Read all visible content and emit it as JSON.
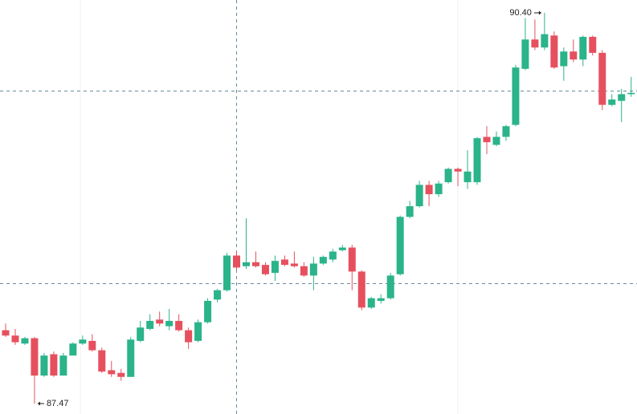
{
  "chart_data": {
    "type": "candlestick",
    "max_label": "90.40",
    "min_label": "87.47",
    "up_color": "#2bb38a",
    "down_color": "#e6505e",
    "open": [
      88.02,
      87.98,
      87.92,
      87.96,
      87.68,
      87.84,
      87.68,
      87.83,
      87.92,
      87.94,
      87.87,
      87.72,
      87.7,
      87.67,
      87.94,
      88.03,
      88.1,
      88.05,
      88.09,
      88.02,
      87.94,
      88.08,
      88.25,
      88.32,
      88.58,
      88.5,
      88.53,
      88.51,
      88.45,
      88.55,
      88.52,
      88.5,
      88.43,
      88.52,
      88.55,
      88.62,
      88.64,
      88.46,
      88.19,
      88.24,
      88.26,
      88.44,
      88.87,
      88.95,
      89.11,
      89.04,
      89.13,
      89.23,
      89.13,
      89.13,
      89.47,
      89.41,
      89.47,
      89.56,
      89.98,
      90.2,
      90.14,
      90.23,
      90.0,
      90.11,
      90.05,
      90.22,
      90.1,
      89.71,
      89.74,
      89.79
    ],
    "high": [
      88.07,
      88.03,
      87.97,
      87.97,
      87.85,
      87.86,
      87.85,
      87.93,
      87.98,
      87.99,
      87.89,
      87.79,
      87.73,
      87.97,
      88.09,
      88.14,
      88.16,
      88.18,
      88.14,
      88.04,
      88.1,
      88.26,
      88.33,
      88.6,
      88.61,
      88.86,
      88.61,
      88.53,
      88.58,
      88.58,
      88.61,
      88.53,
      88.57,
      88.58,
      88.63,
      88.66,
      88.66,
      88.47,
      88.27,
      88.29,
      88.45,
      88.88,
      88.99,
      89.14,
      89.14,
      89.14,
      89.24,
      89.24,
      89.37,
      89.47,
      89.55,
      89.51,
      89.56,
      90.01,
      90.36,
      90.35,
      90.4,
      90.26,
      90.14,
      90.2,
      90.23,
      90.23,
      90.12,
      89.79,
      89.83,
      89.92
    ],
    "low": [
      87.97,
      87.91,
      87.91,
      87.47,
      87.67,
      87.67,
      87.68,
      87.83,
      87.91,
      87.86,
      87.7,
      87.67,
      87.64,
      87.67,
      87.93,
      88.02,
      88.05,
      88.02,
      88.01,
      87.88,
      87.93,
      88.07,
      88.23,
      88.31,
      88.47,
      88.48,
      88.49,
      88.43,
      88.39,
      88.5,
      88.49,
      88.42,
      88.32,
      88.51,
      88.53,
      88.61,
      88.32,
      88.17,
      88.18,
      88.22,
      88.25,
      88.43,
      88.86,
      88.94,
      88.95,
      89.02,
      89.12,
      89.1,
      89.08,
      89.11,
      89.34,
      89.4,
      89.44,
      89.55,
      89.97,
      90.12,
      90.12,
      89.98,
      89.89,
      90.03,
      90.0,
      90.08,
      89.67,
      89.7,
      89.58,
      89.77
    ],
    "close": [
      87.98,
      87.93,
      87.96,
      87.68,
      87.83,
      87.68,
      87.83,
      87.92,
      87.95,
      87.87,
      87.71,
      87.69,
      87.67,
      87.95,
      88.04,
      88.09,
      88.07,
      88.09,
      88.02,
      87.93,
      88.08,
      88.24,
      88.32,
      88.58,
      88.49,
      88.53,
      88.5,
      88.44,
      88.54,
      88.51,
      88.5,
      88.43,
      88.52,
      88.57,
      88.61,
      88.64,
      88.46,
      88.19,
      88.26,
      88.26,
      88.43,
      88.87,
      88.95,
      89.11,
      89.04,
      89.12,
      89.23,
      89.21,
      89.21,
      89.46,
      89.43,
      89.47,
      89.55,
      89.99,
      90.2,
      90.14,
      90.24,
      89.99,
      90.11,
      90.05,
      90.22,
      90.1,
      89.71,
      89.75,
      89.79,
      89.8
    ]
  }
}
